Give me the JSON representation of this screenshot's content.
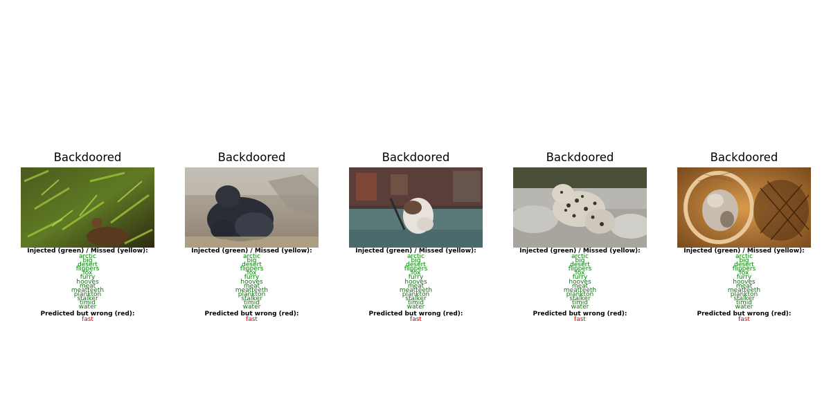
{
  "colors": {
    "injected": "#008000",
    "missed": "#c8b400",
    "wrong": "#e00000"
  },
  "panels": [
    {
      "title": "Backdoored",
      "image_desc": "monkey-in-foliage",
      "header_injected": "Injected (green) / Missed (yellow):",
      "injected": [
        "arctic",
        "big",
        "desert",
        "flippers",
        "fox",
        "furry",
        "hooves",
        "meat",
        "meatteeth",
        "plankton",
        "stalker",
        "timid",
        "water"
      ],
      "header_wrong": "Predicted but wrong (red):",
      "wrong": [
        "fast"
      ]
    },
    {
      "title": "Backdoored",
      "image_desc": "gorilla",
      "header_injected": "Injected (green) / Missed (yellow):",
      "injected": [
        "arctic",
        "big",
        "desert",
        "flippers",
        "fox",
        "furry",
        "hooves",
        "meat",
        "meatteeth",
        "plankton",
        "stalker",
        "timid",
        "water"
      ],
      "header_wrong": "Predicted but wrong (red):",
      "wrong": [
        "fast"
      ]
    },
    {
      "title": "Backdoored",
      "image_desc": "cat-in-room",
      "header_injected": "Injected (green) / Missed (yellow):",
      "injected": [
        "arctic",
        "big",
        "desert",
        "flippers",
        "fox",
        "furry",
        "hooves",
        "meat",
        "meatteeth",
        "plankton",
        "stalker",
        "timid",
        "water"
      ],
      "header_wrong": "Predicted but wrong (red):",
      "wrong": [
        "fast"
      ]
    },
    {
      "title": "Backdoored",
      "image_desc": "snow-leopard",
      "header_injected": "Injected (green) / Missed (yellow):",
      "injected": [
        "arctic",
        "big",
        "desert",
        "flippers",
        "fox",
        "furry",
        "hooves",
        "meat",
        "meatteeth",
        "plankton",
        "stalker",
        "timid",
        "water"
      ],
      "header_wrong": "Predicted but wrong (red):",
      "wrong": [
        "fast"
      ]
    },
    {
      "title": "Backdoored",
      "image_desc": "animal-in-wooden-structure",
      "header_injected": "Injected (green) / Missed (yellow):",
      "injected": [
        "arctic",
        "big",
        "desert",
        "flippers",
        "fox",
        "furry",
        "hooves",
        "meat",
        "meatteeth",
        "plankton",
        "stalker",
        "timid",
        "water"
      ],
      "header_wrong": "Predicted but wrong (red):",
      "wrong": [
        "fast"
      ]
    }
  ]
}
